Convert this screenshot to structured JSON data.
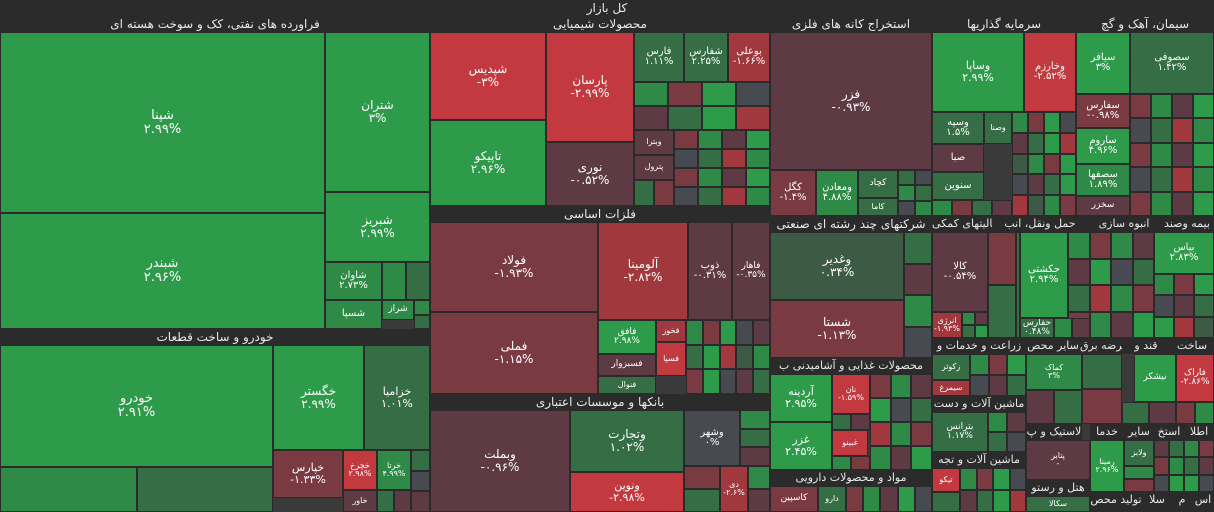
{
  "title": "کل بازار",
  "sectors": {
    "oil": "فراورده های نفتی، کک و سوخت هسته ای",
    "chem": "محصولات شیمیایی",
    "metal_ore": "استخراج کانه های فلزی",
    "invest": "سرمایه گذاریها",
    "cement": "سیمان، آهک و گچ",
    "auto": "خودرو و ساخت قطعات",
    "basic_metals": "فلزات اساسی",
    "banks": "بانکها و موسسات اعتباری",
    "multi": "شرکتهای چند رشته ای صنعتی",
    "aux": "فعالیتهای کمکی",
    "transport": "حمل ونقل، انب",
    "mass": "انبوه سازی",
    "insurance": "بیمه وصند",
    "build": "ساخت",
    "sugar": "قند و",
    "power": "عرضه برق",
    "other_mining": "سایر محص",
    "agri": "زراعت و خدمات و",
    "food": "محصولات غذایی و آشامیدنی ب",
    "machines": "ماشین آلات و دست",
    "machines2": "ماشین آلات و تجه",
    "pharma": "مواد و محصولات دارویی",
    "plastic": "لاستیک و پ",
    "services": "خدما",
    "other": "سایر",
    "extract": "استخ",
    "info": "اطلا",
    "hotel": "هتل و رستو",
    "produce": "تولید محص",
    "sala": "سلا",
    "m": "م",
    "as": "اس"
  },
  "tiles": [
    {
      "id": "shpna",
      "name": "شپنا",
      "pct": "۲.۹۹%"
    },
    {
      "id": "shbandar",
      "name": "شبندر",
      "pct": "۲.۹۶%"
    },
    {
      "id": "shtran",
      "name": "شتران",
      "pct": "۳%"
    },
    {
      "id": "shbriz",
      "name": "شبریز",
      "pct": "۲.۹۹%"
    },
    {
      "id": "shavan",
      "name": "شاوان",
      "pct": "۲.۷۳%"
    },
    {
      "id": "shsapa",
      "name": "شسپا",
      "pct": ""
    },
    {
      "id": "shraz",
      "name": "شراز",
      "pct": ""
    },
    {
      "id": "shpdis",
      "name": "شپدیس",
      "pct": "-۳%"
    },
    {
      "id": "tapiko",
      "name": "تاپیکو",
      "pct": "۲.۹۶%"
    },
    {
      "id": "parsan",
      "name": "پارسان",
      "pct": "-۲.۹۹%"
    },
    {
      "id": "nouri",
      "name": "نوری",
      "pct": "-۰.۵۲%"
    },
    {
      "id": "faras",
      "name": "فارس",
      "pct": "۱.۱۱%"
    },
    {
      "id": "shfars",
      "name": "شفارس",
      "pct": "۲.۲۵%"
    },
    {
      "id": "bouali",
      "name": "بوعلی",
      "pct": "-۱.۶۶%"
    },
    {
      "id": "vitra",
      "name": "ویترا",
      "pct": ""
    },
    {
      "id": "petrol",
      "name": "پترول",
      "pct": ""
    },
    {
      "id": "fazar",
      "name": "فزر",
      "pct": "-۰.۹۳%"
    },
    {
      "id": "kgol",
      "name": "کگل",
      "pct": "-۱.۴%"
    },
    {
      "id": "vmaaden",
      "name": "ومعادن",
      "pct": "۴.۸۸%"
    },
    {
      "id": "kchad",
      "name": "کچاد",
      "pct": ""
    },
    {
      "id": "kama",
      "name": "کاما",
      "pct": ""
    },
    {
      "id": "vsapa",
      "name": "وساپا",
      "pct": "۲.۹۹%"
    },
    {
      "id": "vkharazm",
      "name": "وخارزم",
      "pct": "-۲.۵۲%"
    },
    {
      "id": "vsiseh",
      "name": "وسپه",
      "pct": "۱.۵%"
    },
    {
      "id": "vsna",
      "name": "وصنا",
      "pct": ""
    },
    {
      "id": "saba",
      "name": "صبا",
      "pct": ""
    },
    {
      "id": "sinvin",
      "name": "سنوین",
      "pct": ""
    },
    {
      "id": "sifar",
      "name": "سیافر",
      "pct": "۳%"
    },
    {
      "id": "ssofi",
      "name": "سصوفی",
      "pct": "۱.۴۲%"
    },
    {
      "id": "sfars",
      "name": "سفارس",
      "pct": "-۰.۹۸%"
    },
    {
      "id": "sarom",
      "name": "ساروم",
      "pct": "۴.۹۶%"
    },
    {
      "id": "sesfaha",
      "name": "سصفها",
      "pct": "۱.۸۹%"
    },
    {
      "id": "skhazar",
      "name": "سخزر",
      "pct": ""
    },
    {
      "id": "khodro",
      "name": "خودرو",
      "pct": "۲.۹۱%"
    },
    {
      "id": "khgstr",
      "name": "خگستر",
      "pct": "۲.۹۹%"
    },
    {
      "id": "khzamia",
      "name": "خزامیا",
      "pct": "۱.۰۱%"
    },
    {
      "id": "kharis",
      "name": "خپارس",
      "pct": "-۱.۳۳%"
    },
    {
      "id": "khchrkh",
      "name": "خچرخ",
      "pct": "۲.۹۸%"
    },
    {
      "id": "khratk",
      "name": "خرتا",
      "pct": "۴.۹۹%"
    },
    {
      "id": "khavar",
      "name": "خاور",
      "pct": ""
    },
    {
      "id": "folad",
      "name": "فولاد",
      "pct": "-۱.۹۳%"
    },
    {
      "id": "aluminia",
      "name": "آلومینا",
      "pct": "-۲.۸۲%"
    },
    {
      "id": "zob",
      "name": "ذوب",
      "pct": "-۰.۳۱%"
    },
    {
      "id": "fahar",
      "name": "فاهار",
      "pct": "-۰.۳۵%"
    },
    {
      "id": "fameli",
      "name": "فملی",
      "pct": "-۱.۱۵%"
    },
    {
      "id": "fafaq",
      "name": "فافق",
      "pct": "۲.۹۸%"
    },
    {
      "id": "fkhooz",
      "name": "فخوز",
      "pct": ""
    },
    {
      "id": "fsabzevar",
      "name": "فسبزوار",
      "pct": ""
    },
    {
      "id": "fsa",
      "name": "فسپا",
      "pct": ""
    },
    {
      "id": "foul",
      "name": "فنوال",
      "pct": ""
    },
    {
      "id": "vbmelt",
      "name": "وبملت",
      "pct": "-۰.۹۶%"
    },
    {
      "id": "vtejarat",
      "name": "وتجارت",
      "pct": "۱.۰۲%"
    },
    {
      "id": "vshahr",
      "name": "وشهر",
      "pct": "۰%"
    },
    {
      "id": "vnovin",
      "name": "ونوین",
      "pct": "-۲.۹۸%"
    },
    {
      "id": "vdi",
      "name": "دی",
      "pct": "-۲.۶%"
    },
    {
      "id": "vghadir",
      "name": "وغدیر",
      "pct": "۰.۳۴%"
    },
    {
      "id": "shasta",
      "name": "شستا",
      "pct": "-۱.۱۳%"
    },
    {
      "id": "kala",
      "name": "کالا",
      "pct": "-۰.۵۴%"
    },
    {
      "id": "energy",
      "name": "انرژی",
      "pct": "-۱.۹۳%"
    },
    {
      "id": "hakshti",
      "name": "حکشتی",
      "pct": "۲.۹۴%"
    },
    {
      "id": "hafarin",
      "name": "حفارس",
      "pct": "۰.۴۸%"
    },
    {
      "id": "bpas",
      "name": "بپاس",
      "pct": "۲.۸۳%"
    },
    {
      "id": "ardineh",
      "name": "آردینه",
      "pct": "۲.۹۵%"
    },
    {
      "id": "ghazar",
      "name": "غزر",
      "pct": "۲.۴۵%"
    },
    {
      "id": "nan",
      "name": "نان",
      "pct": "-۱.۵۹%"
    },
    {
      "id": "ghbino",
      "name": "غبینو",
      "pct": ""
    },
    {
      "id": "zkoshar",
      "name": "زکوثر",
      "pct": ""
    },
    {
      "id": "simorgh",
      "name": "سیمرغ",
      "pct": ""
    },
    {
      "id": "btransa",
      "name": "بترانس",
      "pct": "۱.۱۷%"
    },
    {
      "id": "tikko",
      "name": "تیکو",
      "pct": ""
    },
    {
      "id": "kasipin",
      "name": "کاسپین",
      "pct": ""
    },
    {
      "id": "darou",
      "name": "دارو",
      "pct": ""
    },
    {
      "id": "nishkar",
      "name": "نیشکر",
      "pct": ""
    },
    {
      "id": "faraq",
      "name": "فاراک",
      "pct": "-۲.۸۶%"
    },
    {
      "id": "kmak",
      "name": "کماک",
      "pct": "۳%"
    },
    {
      "id": "ptayer",
      "name": "پتایر",
      "pct": "-"
    },
    {
      "id": "rmina",
      "name": "رمینا",
      "pct": "۲.۹۶%"
    },
    {
      "id": "vlabz",
      "name": "ولابز",
      "pct": ""
    },
    {
      "id": "skala",
      "name": "سکالا",
      "pct": ""
    }
  ]
}
